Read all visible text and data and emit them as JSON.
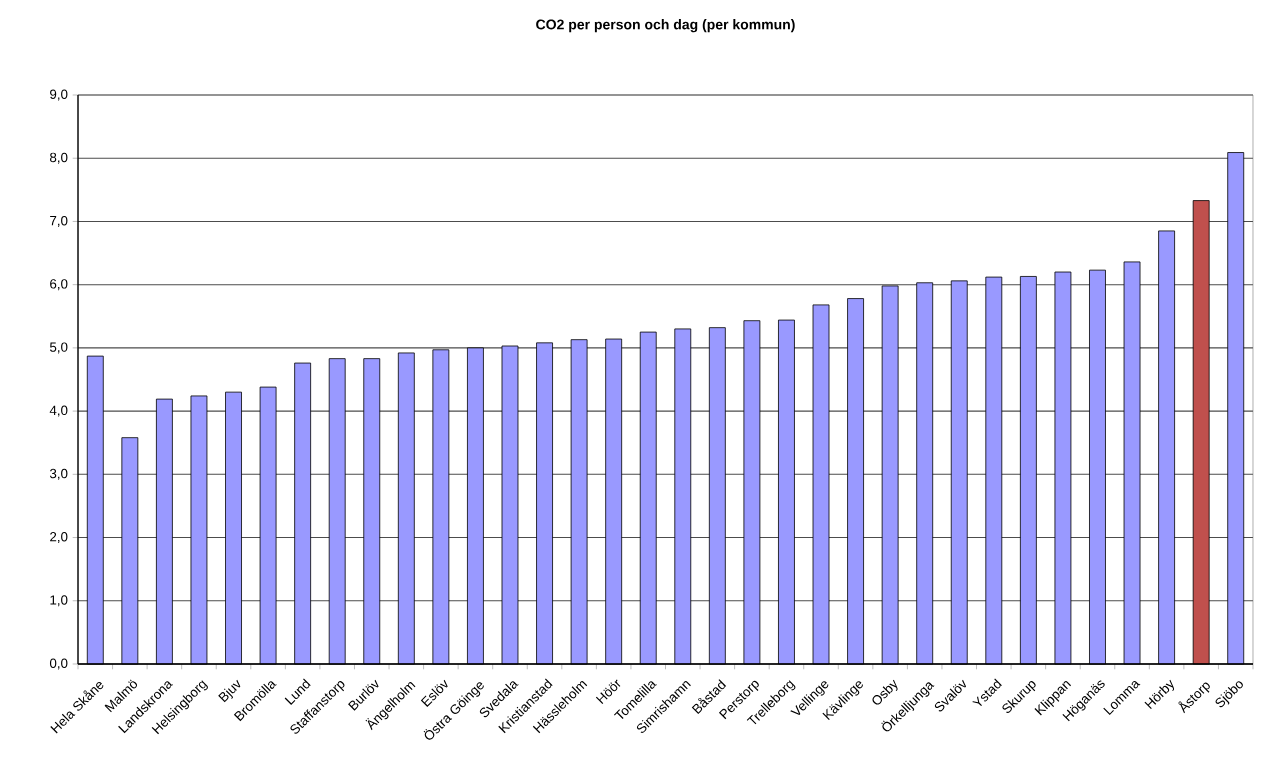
{
  "chart_data": {
    "type": "bar",
    "title": "CO2 per person och dag (per kommun)",
    "categories": [
      "Hela Skåne",
      "Malmö",
      "Landskrona",
      "Helsingborg",
      "Bjuv",
      "Bromölla",
      "Lund",
      "Staffanstorp",
      "Burlöv",
      "Ängelholm",
      "Eslöv",
      "Östra Göinge",
      "Svedala",
      "Kristianstad",
      "Hässleholm",
      "Höör",
      "Tomelilla",
      "Simrishamn",
      "Båstad",
      "Perstorp",
      "Trelleborg",
      "Vellinge",
      "Kävlinge",
      "Osby",
      "Örkelljunga",
      "Svalöv",
      "Ystad",
      "Skurup",
      "Klippan",
      "Höganäs",
      "Lomma",
      "Hörby",
      "Åstorp",
      "Sjöbo"
    ],
    "values": [
      4.87,
      3.58,
      4.19,
      4.24,
      4.3,
      4.38,
      4.76,
      4.83,
      4.83,
      4.92,
      4.97,
      5.0,
      5.03,
      5.08,
      5.13,
      5.14,
      5.25,
      5.3,
      5.32,
      5.43,
      5.44,
      5.68,
      5.78,
      5.98,
      6.03,
      6.06,
      6.12,
      6.13,
      6.2,
      6.23,
      6.36,
      6.85,
      7.33,
      8.09
    ],
    "colors": [
      "#9999ff",
      "#9999ff",
      "#9999ff",
      "#9999ff",
      "#9999ff",
      "#9999ff",
      "#9999ff",
      "#9999ff",
      "#9999ff",
      "#9999ff",
      "#9999ff",
      "#9999ff",
      "#9999ff",
      "#9999ff",
      "#9999ff",
      "#9999ff",
      "#9999ff",
      "#9999ff",
      "#9999ff",
      "#9999ff",
      "#9999ff",
      "#9999ff",
      "#9999ff",
      "#9999ff",
      "#9999ff",
      "#9999ff",
      "#9999ff",
      "#9999ff",
      "#9999ff",
      "#9999ff",
      "#9999ff",
      "#9999ff",
      "#c0504d",
      "#9999ff"
    ],
    "ylim": [
      0,
      9
    ],
    "yticks": [
      {
        "value": 0,
        "label": "0,0"
      },
      {
        "value": 1,
        "label": "1,0"
      },
      {
        "value": 2,
        "label": "2,0"
      },
      {
        "value": 3,
        "label": "3,0"
      },
      {
        "value": 4,
        "label": "4,0"
      },
      {
        "value": 5,
        "label": "5,0"
      },
      {
        "value": 6,
        "label": "6,0"
      },
      {
        "value": 7,
        "label": "7,0"
      },
      {
        "value": 8,
        "label": "8,0"
      },
      {
        "value": 9,
        "label": "9,0"
      }
    ],
    "grid": "y"
  }
}
